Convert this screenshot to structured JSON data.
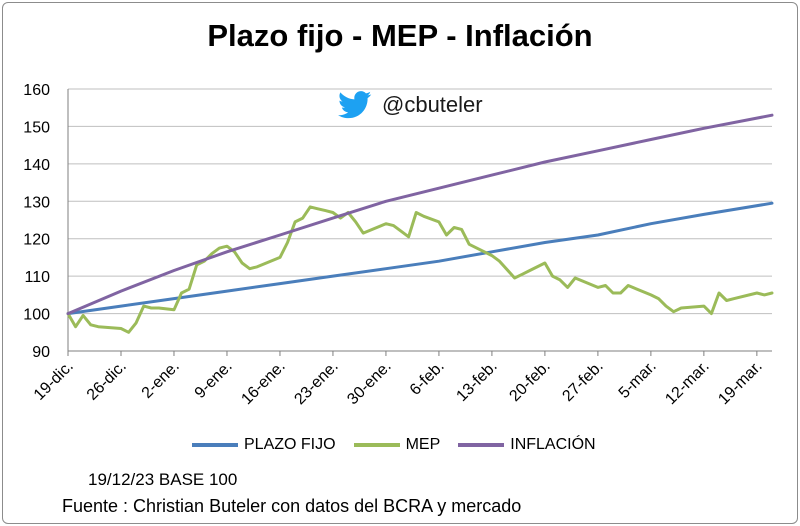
{
  "chart_data": {
    "type": "line",
    "title": "Plazo fijo - MEP - Inflación",
    "xlabel": "",
    "ylabel": "",
    "ylim": [
      90,
      160
    ],
    "yticks": [
      90,
      100,
      110,
      120,
      130,
      140,
      150,
      160
    ],
    "x_tick_labels": [
      "19-dic.",
      "26-dic.",
      "2-ene.",
      "9-ene.",
      "16-ene.",
      "23-ene.",
      "30-ene.",
      "6-feb.",
      "13-feb.",
      "20-feb.",
      "27-feb.",
      "5-mar.",
      "12-mar.",
      "19-mar."
    ],
    "x_start_day": 0,
    "x_tick_step_days": 7,
    "x_end_day": 93,
    "grid": "horizontal",
    "legend_position": "bottom",
    "series": [
      {
        "name": "PLAZO FIJO",
        "color": "#4a7ebb",
        "x": [
          0,
          7,
          14,
          21,
          28,
          35,
          42,
          49,
          56,
          63,
          70,
          77,
          84,
          93
        ],
        "values": [
          100,
          102,
          104,
          106,
          108,
          110,
          112,
          114,
          116.5,
          119,
          121,
          124,
          126.5,
          129.5
        ]
      },
      {
        "name": "MEP",
        "color": "#9bbb59",
        "x": [
          0,
          1,
          2,
          3,
          4,
          7,
          8,
          9,
          10,
          11,
          12,
          14,
          15,
          16,
          17,
          18,
          19,
          20,
          21,
          22,
          23,
          24,
          25,
          28,
          29,
          30,
          31,
          32,
          33,
          34,
          35,
          36,
          37,
          38,
          39,
          42,
          43,
          44,
          45,
          46,
          47,
          49,
          50,
          51,
          52,
          53,
          56,
          57,
          59,
          60,
          61,
          63,
          64,
          65,
          66,
          67,
          70,
          71,
          72,
          73,
          74,
          77,
          78,
          79,
          80,
          81,
          84,
          85,
          86,
          87,
          88,
          91,
          92,
          93
        ],
        "values": [
          100,
          96.5,
          99.5,
          97,
          96.5,
          96,
          95,
          97.5,
          102,
          101.5,
          101.5,
          101,
          105.5,
          106.5,
          113,
          114,
          116,
          117.5,
          118,
          116.5,
          113.5,
          112,
          112.5,
          115,
          119,
          124.5,
          125.5,
          128.5,
          128,
          127.5,
          127,
          125.5,
          127,
          124.5,
          121.5,
          124,
          123.5,
          122,
          120.5,
          127,
          126,
          124.5,
          121,
          123,
          122.5,
          118.5,
          115.5,
          114,
          109.5,
          110.5,
          111.5,
          113.5,
          110,
          109,
          107,
          109.5,
          107,
          107.5,
          105.5,
          105.5,
          107.5,
          105,
          104,
          102,
          100.5,
          101.5,
          102,
          100,
          105.5,
          103.5,
          104,
          105.5,
          105,
          105.5
        ]
      },
      {
        "name": "INFLACIÓN",
        "color": "#8064a2",
        "x": [
          0,
          7,
          14,
          21,
          28,
          35,
          42,
          49,
          56,
          63,
          70,
          77,
          84,
          93
        ],
        "values": [
          100,
          106,
          111.5,
          116.5,
          121,
          125.5,
          130,
          133.5,
          137,
          140.5,
          143.5,
          146.5,
          149.5,
          153
        ]
      }
    ]
  },
  "watermark": {
    "icon": "twitter-bird-icon",
    "icon_color": "#1da1f2",
    "handle": "@cbuteler"
  },
  "notes": {
    "base": "19/12/23 BASE 100",
    "source": "Fuente : Christian Buteler con datos del BCRA y mercado"
  }
}
